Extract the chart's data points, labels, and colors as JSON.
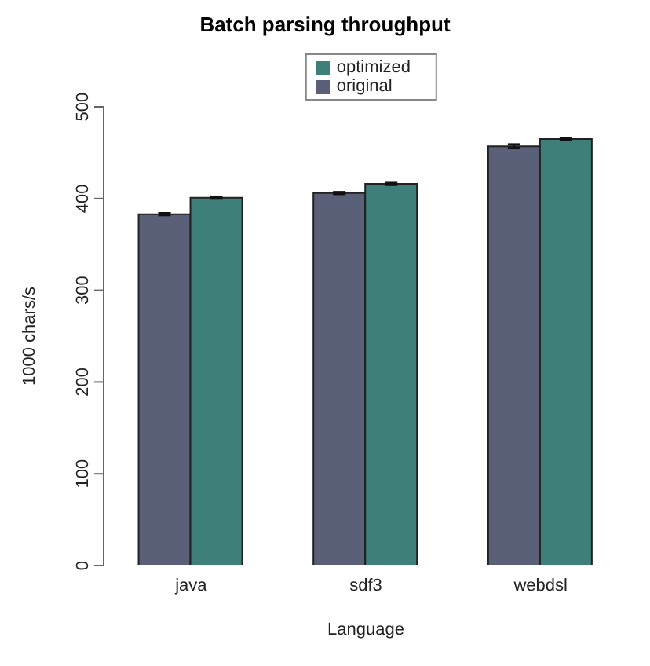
{
  "chart_data": {
    "type": "bar",
    "title": "Batch parsing throughput",
    "xlabel": "Language",
    "ylabel": "1000 chars/s",
    "categories": [
      "java",
      "sdf3",
      "webdsl"
    ],
    "series": [
      {
        "name": "original",
        "color": "#5b6079",
        "values": [
          383,
          406,
          457
        ],
        "errors": [
          1,
          1,
          2
        ]
      },
      {
        "name": "optimized",
        "color": "#3e7f7a",
        "values": [
          401,
          416,
          465
        ],
        "errors": [
          1,
          1,
          1
        ]
      }
    ],
    "ylim": [
      0,
      500
    ],
    "yticks": [
      0,
      100,
      200,
      300,
      400,
      500
    ],
    "grid": false,
    "legend": "top"
  }
}
